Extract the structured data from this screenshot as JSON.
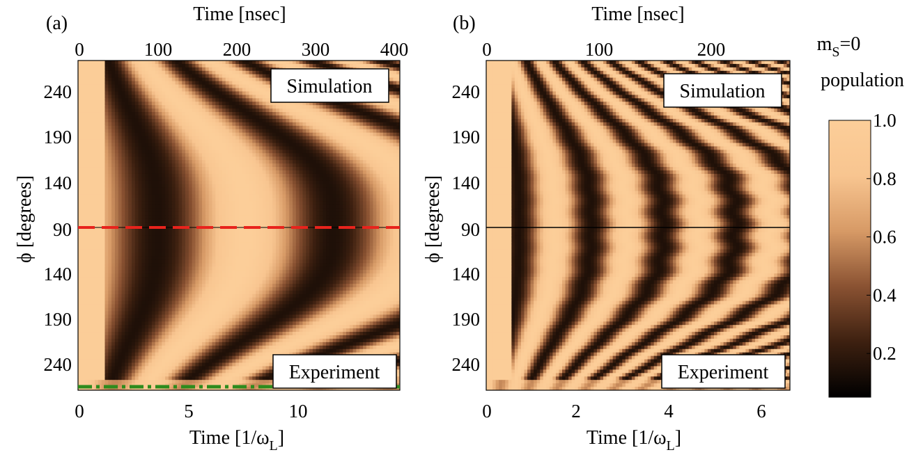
{
  "colors": {
    "colormap": [
      "#000000",
      "#3d2010",
      "#8a5232",
      "#d79a66",
      "#f8c590",
      "#fcce99"
    ],
    "red_dash": "#e8231c",
    "green_dashdot": "#2e8b1d"
  },
  "colorbar": {
    "title_line1_main": "m",
    "title_line1_sub": "S",
    "title_line1_rest": "=0",
    "title_line2": "population",
    "ticks": [
      "1.0",
      "0.8",
      "0.6",
      "0.4",
      "0.2"
    ],
    "tick_values": [
      1.0,
      0.8,
      0.6,
      0.4,
      0.2
    ],
    "range": [
      0.05,
      1.0
    ]
  },
  "chart_data": [
    {
      "type": "heatmap",
      "panel_label": "(a)",
      "top_xlabel": "Time [nsec]",
      "top_xticks": [
        "0",
        "100",
        "200",
        "300",
        "400"
      ],
      "top_xlim": [
        0,
        400
      ],
      "bottom_xlabel_main": "Time [1/ω",
      "bottom_xlabel_sub": "L",
      "bottom_xlabel_close": "]",
      "bottom_xticks": [
        "0",
        "5",
        "10"
      ],
      "bottom_xlim": [
        0,
        14.7
      ],
      "ylabel": "ϕ [degrees]",
      "top_yticks": [
        "240",
        "190",
        "140",
        "90"
      ],
      "bottom_yticks": [
        "90",
        "140",
        "190",
        "240"
      ],
      "ylim": [
        270,
        90
      ],
      "top_box": "Simulation",
      "bottom_box": "Experiment",
      "fringe_freq": 1.0,
      "wobble": 0.0,
      "boundary_line": "red-dashed",
      "bottom_line": "green-dashdot"
    },
    {
      "type": "heatmap",
      "panel_label": "(b)",
      "top_xlabel": "Time [nsec]",
      "top_xticks": [
        "0",
        "100",
        "200"
      ],
      "top_xlim": [
        0,
        270
      ],
      "bottom_xlabel_main": "Time [1/ω",
      "bottom_xlabel_sub": "L",
      "bottom_xlabel_close": "]",
      "bottom_xticks": [
        "0",
        "2",
        "4",
        "6"
      ],
      "bottom_xlim": [
        0,
        6.6
      ],
      "ylabel": "ϕ [degrees]",
      "top_yticks": [
        "240",
        "190",
        "140",
        "90"
      ],
      "bottom_yticks": [
        "90",
        "140",
        "190",
        "240"
      ],
      "ylim": [
        270,
        90
      ],
      "top_box": "Simulation",
      "bottom_box": "Experiment",
      "fringe_freq": 2.3,
      "wobble": 1.0,
      "boundary_line": "black-solid",
      "bottom_line": "none"
    }
  ]
}
